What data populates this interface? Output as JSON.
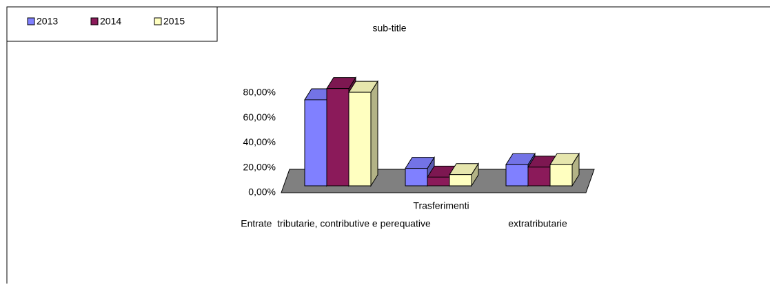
{
  "chart_data": {
    "type": "bar3d",
    "title": "sub-title",
    "categories": [
      "Entrate  tributarie, contributive e perequative",
      "Trasferimenti",
      "extratributarie"
    ],
    "series": [
      {
        "name": "2013",
        "color": "#8080ff",
        "values": [
          69,
          14,
          17
        ]
      },
      {
        "name": "2014",
        "color": "#8b1a5a",
        "values": [
          78,
          7,
          15
        ]
      },
      {
        "name": "2015",
        "color": "#ffffc0",
        "values": [
          75,
          9,
          17
        ]
      }
    ],
    "ylim": [
      0,
      80
    ],
    "yticks": [
      {
        "value": 0,
        "label": "0,00%"
      },
      {
        "value": 20,
        "label": "20,00%"
      },
      {
        "value": 40,
        "label": "40,00%"
      },
      {
        "value": 60,
        "label": "60,00%"
      },
      {
        "value": 80,
        "label": "80,00%"
      }
    ],
    "legend": "top-left"
  }
}
